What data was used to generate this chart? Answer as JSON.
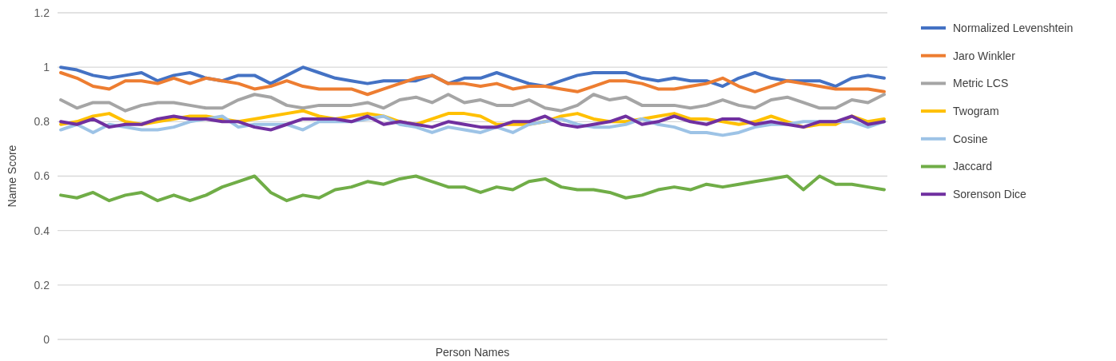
{
  "chart_data": {
    "type": "line",
    "xlabel": "Person Names",
    "ylabel": "Name Score",
    "categories": [
      null,
      null,
      null,
      null,
      null,
      null,
      null,
      null,
      null,
      null,
      null,
      null,
      null,
      null,
      null,
      null,
      null,
      null,
      null,
      null,
      null,
      null,
      null,
      null,
      null,
      null,
      null,
      null,
      null,
      null,
      null,
      null,
      null,
      null,
      null,
      null,
      null,
      null,
      null,
      null,
      null,
      null,
      null,
      null,
      null,
      null,
      null,
      null,
      null,
      null,
      null,
      null
    ],
    "ylim": [
      0,
      1.2
    ],
    "yticks": [
      0,
      0.2,
      0.4,
      0.6,
      0.8,
      1,
      1.2
    ],
    "grid": "y",
    "legend": "right",
    "tick_labels": "y",
    "marker": "none",
    "line_style": "solid",
    "series": [
      {
        "name": "Normalized Levenshtein",
        "color": "#4472c4",
        "values": [
          1.0,
          0.99,
          0.97,
          0.96,
          0.97,
          0.98,
          0.95,
          0.97,
          0.98,
          0.96,
          0.95,
          0.97,
          0.97,
          0.94,
          0.97,
          1.0,
          0.98,
          0.96,
          0.95,
          0.94,
          0.95,
          0.95,
          0.95,
          0.97,
          0.94,
          0.96,
          0.96,
          0.98,
          0.96,
          0.94,
          0.93,
          0.95,
          0.97,
          0.98,
          0.98,
          0.98,
          0.96,
          0.95,
          0.96,
          0.95,
          0.95,
          0.93,
          0.96,
          0.98,
          0.96,
          0.95,
          0.95,
          0.95,
          0.93,
          0.96,
          0.97,
          0.96
        ]
      },
      {
        "name": "Jaro Winkler",
        "color": "#ed7d31",
        "values": [
          0.98,
          0.96,
          0.93,
          0.92,
          0.95,
          0.95,
          0.94,
          0.96,
          0.94,
          0.96,
          0.95,
          0.94,
          0.92,
          0.93,
          0.95,
          0.93,
          0.92,
          0.92,
          0.92,
          0.9,
          0.92,
          0.94,
          0.96,
          0.97,
          0.94,
          0.94,
          0.93,
          0.94,
          0.92,
          0.93,
          0.93,
          0.92,
          0.91,
          0.93,
          0.95,
          0.95,
          0.94,
          0.92,
          0.92,
          0.93,
          0.94,
          0.96,
          0.93,
          0.91,
          0.93,
          0.95,
          0.94,
          0.93,
          0.92,
          0.92,
          0.92,
          0.91
        ]
      },
      {
        "name": "Metric LCS",
        "color": "#a5a5a5",
        "values": [
          0.88,
          0.85,
          0.87,
          0.87,
          0.84,
          0.86,
          0.87,
          0.87,
          0.86,
          0.85,
          0.85,
          0.88,
          0.9,
          0.89,
          0.86,
          0.85,
          0.86,
          0.86,
          0.86,
          0.87,
          0.85,
          0.88,
          0.89,
          0.87,
          0.9,
          0.87,
          0.88,
          0.86,
          0.86,
          0.88,
          0.85,
          0.84,
          0.86,
          0.9,
          0.88,
          0.89,
          0.86,
          0.86,
          0.86,
          0.85,
          0.86,
          0.88,
          0.86,
          0.85,
          0.88,
          0.89,
          0.87,
          0.85,
          0.85,
          0.88,
          0.87,
          0.9
        ]
      },
      {
        "name": "Twogram",
        "color": "#ffc000",
        "values": [
          0.79,
          0.8,
          0.82,
          0.83,
          0.8,
          0.79,
          0.8,
          0.81,
          0.82,
          0.82,
          0.81,
          0.8,
          0.81,
          0.82,
          0.83,
          0.84,
          0.82,
          0.81,
          0.82,
          0.83,
          0.82,
          0.8,
          0.79,
          0.81,
          0.83,
          0.83,
          0.82,
          0.79,
          0.79,
          0.79,
          0.8,
          0.82,
          0.83,
          0.81,
          0.8,
          0.8,
          0.81,
          0.82,
          0.83,
          0.81,
          0.81,
          0.8,
          0.79,
          0.8,
          0.82,
          0.8,
          0.78,
          0.79,
          0.79,
          0.82,
          0.8,
          0.81
        ]
      },
      {
        "name": "Cosine",
        "color": "#9dc3e6",
        "values": [
          0.77,
          0.79,
          0.76,
          0.79,
          0.78,
          0.77,
          0.77,
          0.78,
          0.8,
          0.81,
          0.82,
          0.78,
          0.79,
          0.79,
          0.79,
          0.77,
          0.8,
          0.8,
          0.8,
          0.81,
          0.82,
          0.79,
          0.78,
          0.76,
          0.78,
          0.77,
          0.76,
          0.78,
          0.76,
          0.79,
          0.8,
          0.81,
          0.79,
          0.78,
          0.78,
          0.79,
          0.81,
          0.79,
          0.78,
          0.76,
          0.76,
          0.75,
          0.76,
          0.78,
          0.79,
          0.79,
          0.8,
          0.8,
          0.8,
          0.8,
          0.78,
          0.8
        ]
      },
      {
        "name": "Jaccard",
        "color": "#70ad47",
        "values": [
          0.53,
          0.52,
          0.54,
          0.51,
          0.53,
          0.54,
          0.51,
          0.53,
          0.51,
          0.53,
          0.56,
          0.58,
          0.6,
          0.54,
          0.51,
          0.53,
          0.52,
          0.55,
          0.56,
          0.58,
          0.57,
          0.59,
          0.6,
          0.58,
          0.56,
          0.56,
          0.54,
          0.56,
          0.55,
          0.58,
          0.59,
          0.56,
          0.55,
          0.55,
          0.54,
          0.52,
          0.53,
          0.55,
          0.56,
          0.55,
          0.57,
          0.56,
          0.57,
          0.58,
          0.59,
          0.6,
          0.55,
          0.6,
          0.57,
          0.57,
          0.56,
          0.55
        ]
      },
      {
        "name": "Sorenson Dice",
        "color": "#7030a0",
        "values": [
          0.8,
          0.79,
          0.81,
          0.78,
          0.79,
          0.79,
          0.81,
          0.82,
          0.81,
          0.81,
          0.8,
          0.8,
          0.78,
          0.77,
          0.79,
          0.81,
          0.81,
          0.81,
          0.8,
          0.82,
          0.79,
          0.8,
          0.79,
          0.78,
          0.8,
          0.79,
          0.78,
          0.78,
          0.8,
          0.8,
          0.82,
          0.79,
          0.78,
          0.79,
          0.8,
          0.82,
          0.79,
          0.8,
          0.82,
          0.8,
          0.79,
          0.81,
          0.81,
          0.79,
          0.8,
          0.79,
          0.78,
          0.8,
          0.8,
          0.82,
          0.79,
          0.8
        ]
      }
    ]
  }
}
